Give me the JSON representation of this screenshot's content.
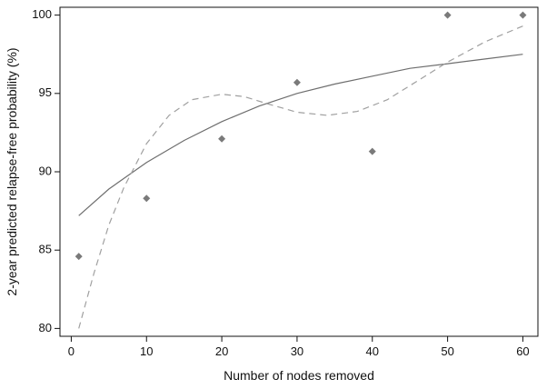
{
  "chart_data": {
    "type": "scatter",
    "title": "",
    "xlabel": "Number of nodes removed",
    "ylabel": "2-year predicted relapse-free probability (%)",
    "xlim": [
      -1.5,
      62
    ],
    "ylim": [
      79.5,
      100.5
    ],
    "xticks": [
      0,
      10,
      20,
      30,
      40,
      50,
      60
    ],
    "yticks": [
      80,
      85,
      90,
      95,
      100
    ],
    "grid": false,
    "series": [
      {
        "kind": "points",
        "color": "#7a7a7a",
        "marker": "diamond",
        "x": [
          1,
          10,
          20,
          30,
          40,
          50,
          60
        ],
        "y": [
          84.6,
          88.3,
          92.1,
          95.7,
          91.3,
          100,
          100
        ]
      },
      {
        "kind": "line",
        "style": "solid",
        "color": "#6e6e6e",
        "x": [
          1,
          5,
          10,
          15,
          20,
          25,
          30,
          35,
          40,
          45,
          50,
          55,
          60
        ],
        "y": [
          87.2,
          88.9,
          90.6,
          92.0,
          93.2,
          94.2,
          95.0,
          95.6,
          96.1,
          96.6,
          96.9,
          97.2,
          97.5
        ]
      },
      {
        "kind": "line",
        "style": "dashed",
        "color": "#a0a0a0",
        "x": [
          1,
          3,
          5,
          7,
          10,
          13,
          16,
          20,
          23,
          26,
          30,
          34,
          38,
          42,
          46,
          50,
          55,
          60
        ],
        "y": [
          80.0,
          83.5,
          86.6,
          89.0,
          91.8,
          93.6,
          94.6,
          94.95,
          94.8,
          94.35,
          93.8,
          93.6,
          93.85,
          94.6,
          95.8,
          97.0,
          98.3,
          99.3
        ]
      }
    ]
  }
}
